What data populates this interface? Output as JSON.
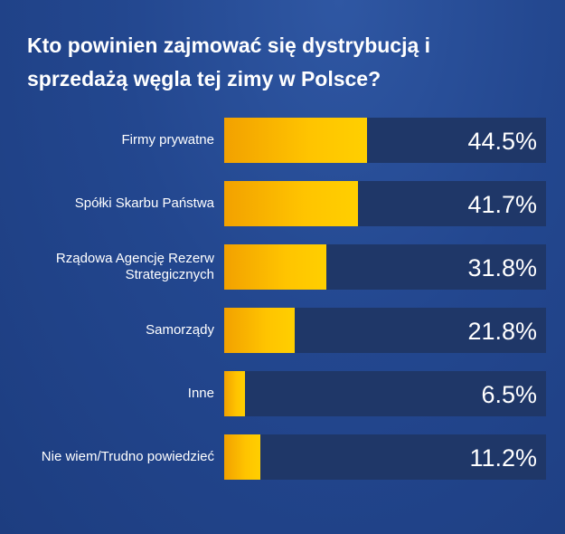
{
  "chart_data": {
    "type": "bar",
    "orientation": "horizontal",
    "title": "Kto powinien zajmować się dystrybucją i sprzedażą węgla tej zimy w Polsce?",
    "categories": [
      "Firmy prywatne",
      "Spółki Skarbu Państwa",
      "Rządowa Agencję Rezerw Strategicznych",
      "Samorządy",
      "Inne",
      "Nie wiem/Trudno powiedzieć"
    ],
    "values": [
      44.5,
      41.7,
      31.8,
      21.8,
      6.5,
      11.2
    ],
    "value_labels": [
      "44.5%",
      "41.7%",
      "31.8%",
      "21.8%",
      "6.5%",
      "11.2%"
    ],
    "unit": "%",
    "xlim": [
      0,
      100
    ]
  },
  "colors": {
    "background": "#23478f",
    "bar_fill": "#ffc400",
    "bar_track": "#1f3768",
    "text": "#ffffff"
  }
}
